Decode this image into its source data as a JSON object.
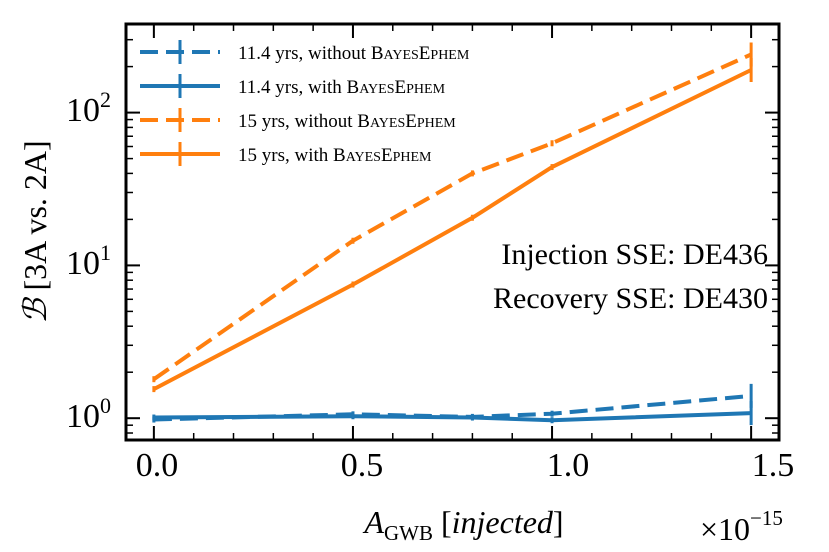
{
  "chart_data": {
    "type": "line",
    "title": "",
    "xlabel": "A_GWB [injected]",
    "ylabel": "B [3A vs. 2A]",
    "x_scale_label": "×10^-15",
    "xlim": [
      -0.07,
      1.57
    ],
    "ylim": [
      0.72,
      380
    ],
    "y_scale": "log",
    "x": [
      0.0,
      0.5,
      0.8,
      1.0,
      1.5
    ],
    "xticks": [
      0.0,
      0.5,
      1.0,
      1.5
    ],
    "xtick_labels": [
      "0.0",
      "0.5",
      "1.0",
      "1.5"
    ],
    "yticks": [
      1,
      10,
      100
    ],
    "ytick_labels": [
      "10",
      "10",
      "10"
    ],
    "ytick_exponents": [
      "0",
      "1",
      "2"
    ],
    "series": [
      {
        "name": "11.4yrs, without BAYESEPHEM",
        "legend_prefix": "11.4",
        "legend_rest": "yrs, without ",
        "color": "#1f77b4",
        "linestyle": "dashed",
        "values": [
          0.98,
          1.06,
          1.02,
          1.07,
          1.4
        ]
      },
      {
        "name": "11.4yrs, with BAYESEPHEM",
        "legend_prefix": "11.4",
        "legend_rest": "yrs, with ",
        "color": "#1f77b4",
        "linestyle": "solid",
        "values": [
          1.01,
          1.03,
          1.01,
          0.97,
          1.08
        ]
      },
      {
        "name": "15yrs, without BAYESEPHEM",
        "legend_prefix": "15",
        "legend_rest": "yrs, without ",
        "color": "#ff7f0e",
        "linestyle": "dashed",
        "values": [
          1.8,
          14.5,
          40,
          63,
          240
        ]
      },
      {
        "name": "15yrs, with BAYESEPHEM",
        "legend_prefix": "15",
        "legend_rest": "yrs, with ",
        "color": "#ff7f0e",
        "linestyle": "solid",
        "values": [
          1.55,
          7.5,
          20.5,
          44,
          190
        ]
      }
    ],
    "legend": {
      "position": "top-left",
      "sc_word1_first": "B",
      "sc_word1_rest": "AYES",
      "sc_word2_first": "E",
      "sc_word2_rest": "PHEM"
    },
    "annotations": [
      "Injection SSE: DE436",
      "Recovery SSE: DE430"
    ]
  }
}
